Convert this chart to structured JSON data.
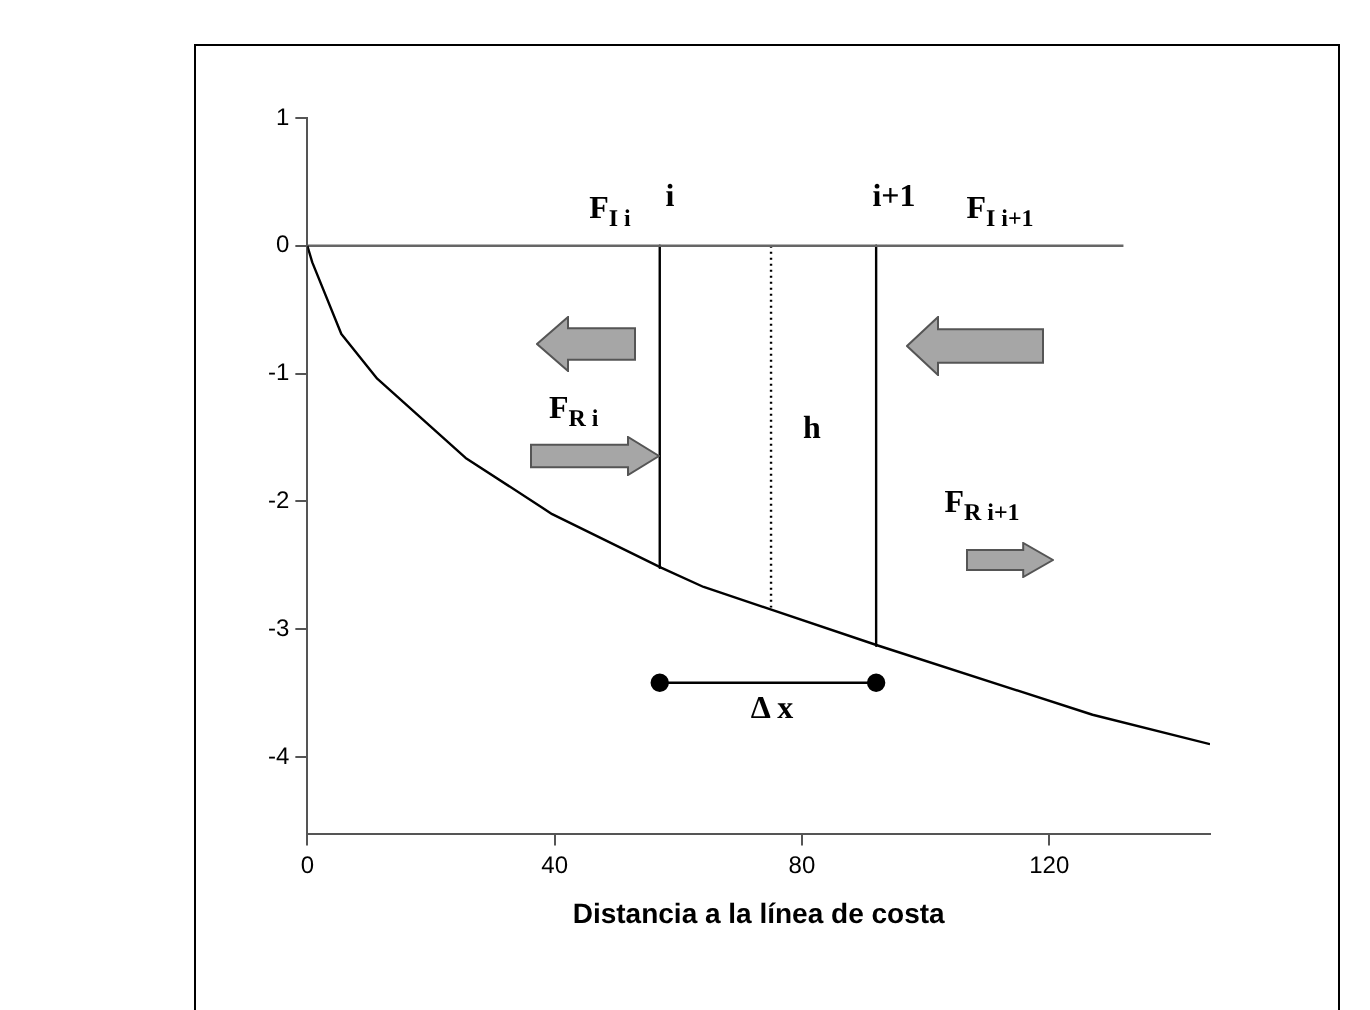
{
  "chart_data": {
    "type": "line",
    "xlabel": "Distancia a la línea de costa",
    "xlim": [
      0,
      146
    ],
    "ylim": [
      -4.6,
      1
    ],
    "xticks": [
      0,
      40,
      80,
      120
    ],
    "yticks": [
      1,
      0,
      -1,
      -2,
      -3,
      -4
    ],
    "grid": false,
    "legend": false,
    "marker": "none",
    "line_style": "solid",
    "series": [
      {
        "color": "#000000",
        "x": [
          0,
          0.8,
          5.5,
          11.3,
          25.6,
          39.6,
          57.3,
          64.1,
          92.4,
          127,
          146
        ],
        "values": [
          0,
          -0.13,
          -0.69,
          -1.04,
          -1.66,
          -2.1,
          -2.52,
          -2.67,
          -3.13,
          -3.67,
          -3.9
        ]
      },
      {
        "color": "#666666",
        "x": [
          0,
          132
        ],
        "values": [
          0,
          0
        ]
      },
      {
        "color": "#000000",
        "x": [
          57,
          57
        ],
        "values": [
          0,
          -2.52
        ]
      },
      {
        "color": "#000000",
        "x": [
          75,
          75
        ],
        "values": [
          0,
          -2.83
        ],
        "line_style": "dotted"
      },
      {
        "color": "#000000",
        "x": [
          92,
          92
        ],
        "values": [
          0,
          -3.13
        ]
      },
      {
        "color": "#000000",
        "x": [
          57,
          92
        ],
        "values": [
          -3.42,
          -3.42
        ],
        "marker": "circle"
      }
    ],
    "annotations": [
      "i",
      "i+1",
      "h",
      "Δ x",
      "F$_{I i}$",
      {
        "text": "F$_{R i}$",
        "x": 57,
        "y": -1.65
      },
      "F$_{I i+1}$",
      "F$_{R i+1}$"
    ]
  }
}
